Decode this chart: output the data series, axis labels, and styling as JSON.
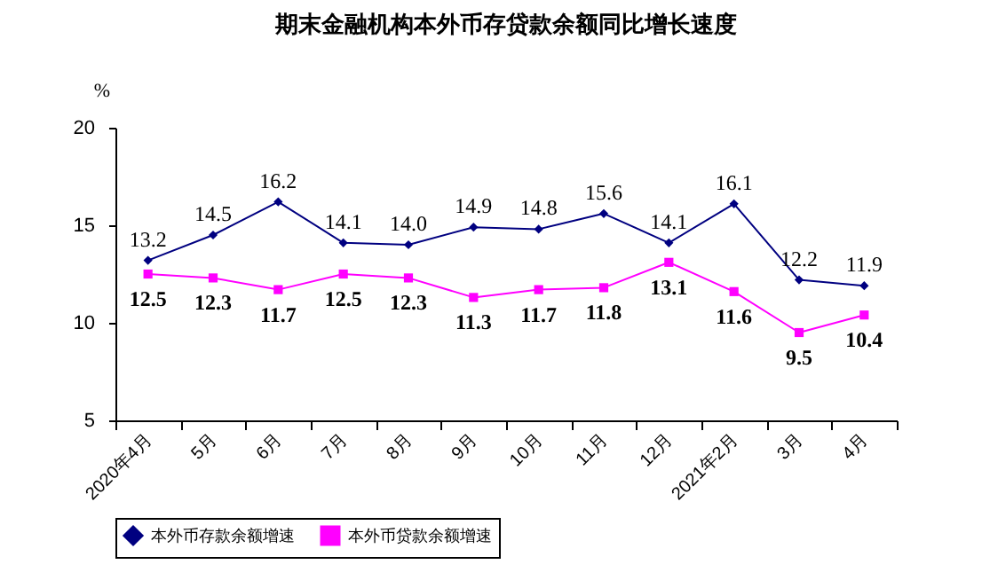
{
  "chart_data": {
    "type": "line",
    "title": "期末金融机构本外币存贷款余额同比增长速度",
    "ylabel": "%",
    "categories": [
      "2020年4月",
      "5月",
      "6月",
      "7月",
      "8月",
      "9月",
      "10月",
      "11月",
      "12月",
      "2021年2月",
      "3月",
      "4月"
    ],
    "series": [
      {
        "name": "本外币存款余额增速",
        "color": "#000080",
        "marker": "diamond",
        "values": [
          13.2,
          14.5,
          16.2,
          14.1,
          14.0,
          14.9,
          14.8,
          15.6,
          14.1,
          16.1,
          12.2,
          11.9
        ],
        "value_labels": [
          "13.2",
          "14.5",
          "16.2",
          "14.1",
          "14.0",
          "14.9",
          "14.8",
          "15.6",
          "14.1",
          "16.1",
          "12.2",
          "11.9"
        ]
      },
      {
        "name": "本外币贷款余额增速",
        "color": "#ff00ff",
        "marker": "square",
        "values": [
          12.5,
          12.3,
          11.7,
          12.5,
          12.3,
          11.3,
          11.7,
          11.8,
          13.1,
          11.6,
          9.5,
          10.4
        ],
        "value_labels": [
          "12.5",
          "12.3",
          "11.7",
          "12.5",
          "12.3",
          "11.3",
          "11.7",
          "11.8",
          "13.1",
          "11.6",
          "9.5",
          "10.4"
        ]
      }
    ],
    "ylim": [
      5,
      20
    ],
    "yticks": [
      5,
      10,
      15,
      20
    ],
    "legend": "bottom"
  }
}
